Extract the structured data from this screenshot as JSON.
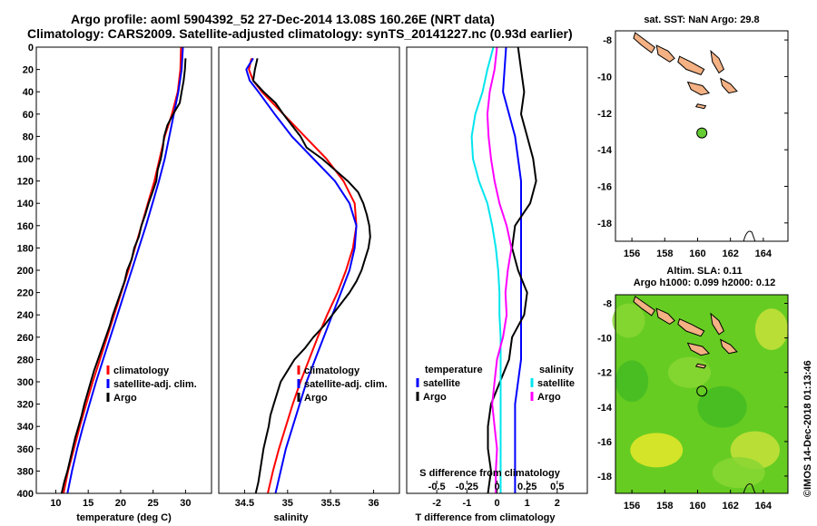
{
  "titles": {
    "line1": "Argo profile: aoml 5904392_52 27-Dec-2014 13.08S 160.26E (NRT data)",
    "line2": "Climatology: CARS2009. Satellite-adjusted climatology: synTS_20141227.nc (0.93d earlier)"
  },
  "chart_data": [
    {
      "type": "line",
      "id": "temperature",
      "xlabel": "temperature (deg C)",
      "ylabel": "",
      "xlim": [
        7,
        34
      ],
      "ylim": [
        400,
        0
      ],
      "xticks": [
        10,
        15,
        20,
        25,
        30
      ],
      "yticks": [
        0,
        20,
        40,
        60,
        80,
        100,
        120,
        140,
        160,
        180,
        200,
        220,
        240,
        260,
        280,
        300,
        320,
        340,
        360,
        380,
        400
      ],
      "legend": [
        "climatology",
        "satellite-adj. clim.",
        "Argo"
      ],
      "series": [
        {
          "name": "climatology",
          "color": "#ff0000",
          "depth": [
            0,
            20,
            40,
            60,
            80,
            100,
            120,
            140,
            160,
            180,
            200,
            220,
            240,
            260,
            280,
            300,
            320,
            340,
            360,
            380,
            400
          ],
          "values": [
            29.3,
            29.2,
            28.8,
            27.9,
            26.8,
            26.0,
            25.2,
            24.2,
            23.2,
            22.2,
            21.2,
            20.1,
            19.0,
            17.9,
            16.8,
            15.7,
            14.7,
            13.7,
            12.8,
            11.9,
            11.2
          ]
        },
        {
          "name": "satellite-adj. clim.",
          "color": "#0000ff",
          "depth": [
            0,
            20,
            40,
            60,
            80,
            100,
            120,
            140,
            160,
            180,
            200,
            220,
            240,
            260,
            280,
            300,
            320,
            340,
            360,
            380,
            400
          ],
          "values": [
            29.6,
            29.4,
            28.9,
            28.2,
            27.5,
            26.8,
            25.9,
            24.9,
            23.9,
            22.8,
            21.7,
            20.6,
            19.5,
            18.4,
            17.3,
            16.2,
            15.2,
            14.2,
            13.3,
            12.5,
            11.8
          ]
        },
        {
          "name": "Argo",
          "color": "#000000",
          "depth": [
            10,
            20,
            30,
            40,
            50,
            60,
            70,
            80,
            90,
            100,
            110,
            120,
            130,
            140,
            150,
            160,
            170,
            180,
            190,
            200,
            210,
            220,
            230,
            240,
            250,
            260,
            270,
            280,
            290,
            300,
            310,
            320,
            330,
            340,
            350,
            360,
            370,
            380,
            390,
            400
          ],
          "values": [
            30.0,
            29.9,
            29.7,
            29.4,
            29.1,
            28.1,
            27.2,
            26.7,
            26.5,
            26.2,
            25.7,
            25.5,
            24.9,
            24.3,
            23.8,
            23.2,
            22.8,
            22.1,
            21.7,
            21.0,
            20.6,
            20.0,
            19.4,
            18.8,
            18.3,
            17.7,
            17.1,
            16.5,
            15.9,
            15.4,
            14.9,
            14.4,
            14.0,
            13.5,
            13.0,
            12.6,
            12.2,
            11.8,
            11.3,
            10.9
          ]
        }
      ]
    },
    {
      "type": "line",
      "id": "salinity",
      "xlabel": "salinity",
      "xlim": [
        34.2,
        36.3
      ],
      "ylim": [
        400,
        0
      ],
      "xticks": [
        34.5,
        35,
        35.5,
        36
      ],
      "xticklabels": [
        "34.5",
        "35",
        "35.5",
        "36"
      ],
      "legend": [
        "climatology",
        "satellite-adj. clim.",
        "Argo"
      ],
      "series": [
        {
          "name": "climatology",
          "color": "#ff0000",
          "depth": [
            10,
            20,
            30,
            40,
            60,
            80,
            100,
            120,
            140,
            160,
            180,
            200,
            220,
            240,
            260,
            280,
            300,
            320,
            340,
            360,
            380,
            400
          ],
          "values": [
            34.58,
            34.55,
            34.6,
            34.7,
            34.95,
            35.2,
            35.45,
            35.65,
            35.78,
            35.8,
            35.76,
            35.68,
            35.58,
            35.46,
            35.35,
            35.25,
            35.15,
            35.06,
            34.98,
            34.9,
            34.83,
            34.77
          ]
        },
        {
          "name": "satellite-adj. clim.",
          "color": "#0000ff",
          "depth": [
            10,
            20,
            30,
            40,
            60,
            80,
            100,
            120,
            140,
            160,
            180,
            200,
            220,
            240,
            260,
            280,
            300,
            320,
            340,
            360,
            380,
            400
          ],
          "values": [
            34.6,
            34.52,
            34.56,
            34.66,
            34.85,
            35.05,
            35.3,
            35.55,
            35.72,
            35.8,
            35.78,
            35.72,
            35.62,
            35.52,
            35.42,
            35.32,
            35.22,
            35.14,
            35.06,
            34.98,
            34.92,
            34.86
          ]
        },
        {
          "name": "Argo",
          "color": "#000000",
          "depth": [
            10,
            20,
            30,
            40,
            50,
            60,
            70,
            80,
            90,
            100,
            110,
            120,
            130,
            140,
            150,
            160,
            170,
            180,
            190,
            200,
            210,
            220,
            230,
            240,
            250,
            260,
            270,
            280,
            290,
            300,
            310,
            320,
            330,
            340,
            350,
            360,
            370,
            380,
            390,
            400
          ],
          "values": [
            34.65,
            34.62,
            34.6,
            34.72,
            34.86,
            34.95,
            35.05,
            35.15,
            35.22,
            35.4,
            35.55,
            35.7,
            35.82,
            35.88,
            35.92,
            35.95,
            35.96,
            35.94,
            35.9,
            35.86,
            35.8,
            35.72,
            35.62,
            35.52,
            35.42,
            35.3,
            35.2,
            35.08,
            35.0,
            34.92,
            34.88,
            34.84,
            34.8,
            34.78,
            34.75,
            34.72,
            34.7,
            34.68,
            34.66,
            34.63
          ]
        }
      ]
    },
    {
      "type": "line",
      "id": "difference",
      "xlabel": "T difference from climatology",
      "xlabel2": "S difference from climatology",
      "xlim": [
        -3,
        3
      ],
      "ylim": [
        400,
        0
      ],
      "xticks": [
        -2,
        -1,
        0,
        1,
        2
      ],
      "s_xticks": [
        -0.5,
        -0.25,
        0,
        0.25,
        0.5
      ],
      "s_xticklabels": [
        "-0.5",
        "-0.25",
        "0",
        "0.25",
        "0.5"
      ],
      "legend_temperature": {
        "title": "temperature",
        "items": [
          "satellite",
          "Argo"
        ]
      },
      "legend_salinity": {
        "title": "salinity",
        "items": [
          "satellite",
          "Argo"
        ]
      },
      "series": [
        {
          "name": "T satellite",
          "color": "#0000ff",
          "depth": [
            0,
            40,
            80,
            120,
            160,
            200,
            240,
            280,
            320,
            360,
            400
          ],
          "values": [
            0.3,
            0.2,
            0.6,
            0.8,
            0.8,
            0.8,
            0.8,
            0.8,
            0.6,
            0.6,
            0.6
          ]
        },
        {
          "name": "T Argo",
          "color": "#000000",
          "depth": [
            0,
            20,
            40,
            60,
            80,
            100,
            120,
            140,
            160,
            180,
            200,
            220,
            240,
            260,
            280,
            300,
            320,
            340,
            360,
            380,
            400
          ],
          "values": [
            0.7,
            0.8,
            0.9,
            0.8,
            1.0,
            1.2,
            1.3,
            1.1,
            0.6,
            0.5,
            0.7,
            1.0,
            0.9,
            0.5,
            0.4,
            0.1,
            -0.2,
            -0.3,
            -0.3,
            -0.2,
            -0.3
          ]
        },
        {
          "name": "S satellite",
          "color": "#00e5ee",
          "depth": [
            0,
            20,
            40,
            60,
            80,
            100,
            120,
            140,
            160,
            180,
            200,
            220,
            240,
            260,
            280,
            300,
            320,
            340,
            360,
            380,
            400
          ],
          "values": [
            -0.03,
            -0.08,
            -0.12,
            -0.18,
            -0.21,
            -0.2,
            -0.15,
            -0.08,
            -0.04,
            -0.01,
            0.01,
            0.02,
            0.02,
            0.03,
            0.03,
            0.03,
            0.03,
            0.03,
            0.03,
            0.03,
            0.03
          ]
        },
        {
          "name": "S Argo",
          "color": "#ff00ff",
          "depth": [
            0,
            20,
            40,
            60,
            80,
            100,
            120,
            140,
            160,
            180,
            200,
            220,
            240,
            260,
            280,
            300,
            320,
            340,
            360,
            380,
            400
          ],
          "values": [
            0.0,
            -0.02,
            -0.06,
            -0.08,
            -0.07,
            -0.05,
            -0.02,
            0.02,
            0.08,
            0.12,
            0.09,
            0.07,
            0.08,
            0.05,
            0.0,
            -0.02,
            -0.04,
            -0.02,
            0.0,
            -0.01,
            -0.01
          ]
        }
      ]
    },
    {
      "type": "scatter",
      "id": "sst-map",
      "title": "sat. SST: NaN Argo: 29.8",
      "xlim": [
        155,
        165.5
      ],
      "ylim": [
        -19,
        -7.5
      ],
      "xticks": [
        156,
        158,
        160,
        162,
        164
      ],
      "yticks": [
        -8,
        -10,
        -12,
        -14,
        -16,
        -18
      ],
      "points": [
        {
          "lon": 160.26,
          "lat": -13.08,
          "color": "#66cc33"
        }
      ]
    },
    {
      "type": "heatmap",
      "id": "sla-map",
      "title1": "Altim. SLA: 0.11",
      "title2": "Argo h1000: 0.099 h2000: 0.12",
      "xlim": [
        155,
        165.5
      ],
      "ylim": [
        -19,
        -7.5
      ],
      "xticks": [
        156,
        158,
        160,
        162,
        164
      ],
      "yticks": [
        -8,
        -10,
        -12,
        -14,
        -16,
        -18
      ],
      "points": [
        {
          "lon": 160.26,
          "lat": -13.08,
          "color": "#66cc33"
        }
      ]
    }
  ],
  "footer": {
    "stamp": "©IMOS 14-Dec-2018 01:13:46"
  },
  "colors": {
    "land": "#f4b183",
    "sla_base": "#66cc22",
    "sla_high": "#e8e82a"
  }
}
